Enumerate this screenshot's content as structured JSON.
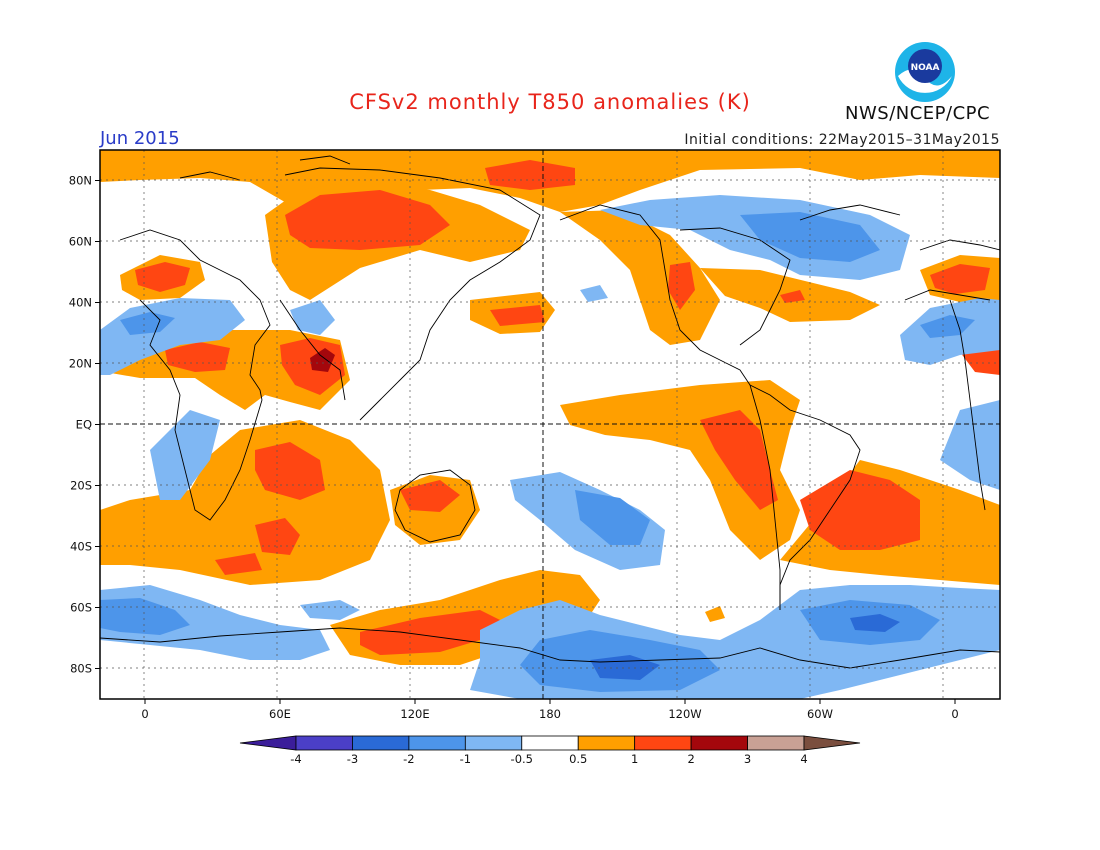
{
  "title": "CFSv2 monthly T850 anomalies (K)",
  "valid_month": "Jun 2015",
  "initial_conditions": "Initial conditions: 22May2015–31May2015",
  "agency": "NWS/NCEP/CPC",
  "logo_text": "NOAA",
  "map": {
    "lat_labels": [
      "80N",
      "60N",
      "40N",
      "20N",
      "EQ",
      "20S",
      "40S",
      "60S",
      "80S"
    ],
    "lat_values": [
      80,
      60,
      40,
      20,
      0,
      -20,
      -40,
      -60,
      -80
    ],
    "lon_labels": [
      "0",
      "60E",
      "120E",
      "180",
      "120W",
      "60W",
      "0"
    ],
    "lon_values": [
      0,
      60,
      120,
      180,
      240,
      300,
      360
    ]
  },
  "colorbar": {
    "labels": [
      "-4",
      "-3",
      "-2",
      "-1",
      "-0.5",
      "0.5",
      "1",
      "2",
      "3",
      "4"
    ],
    "colors": [
      "#3b1d9a",
      "#4b3fc7",
      "#2a6ad6",
      "#4d95ea",
      "#7fb7f3",
      "#ffffff",
      "#ff9f00",
      "#ff4612",
      "#a4070c",
      "#c9a195",
      "#7a4e3e"
    ]
  }
}
